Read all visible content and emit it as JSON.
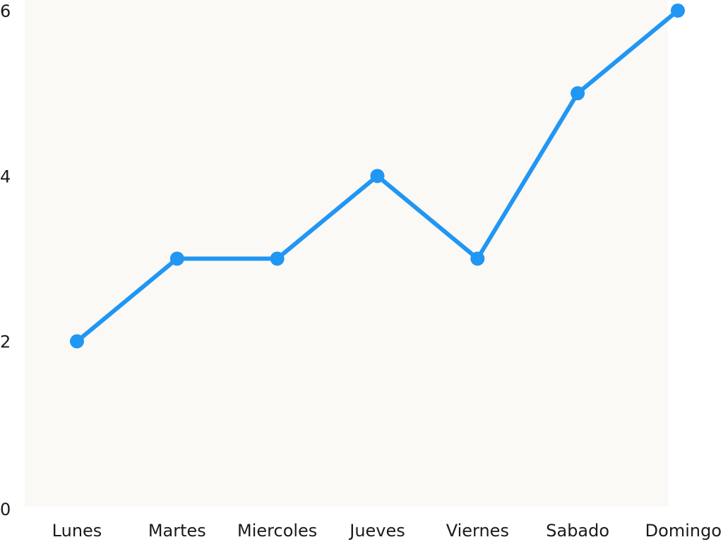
{
  "colors": {
    "plot_background": "#faf9f6",
    "series": "#2196f3",
    "text": "#1a1a1a"
  },
  "chart_data": {
    "type": "line",
    "categories": [
      "Lunes",
      "Martes",
      "Miercoles",
      "Jueves",
      "Viernes",
      "Sabado",
      "Domingo"
    ],
    "series": [
      {
        "values": [
          2,
          3,
          3,
          4,
          3,
          5,
          6
        ]
      }
    ],
    "title": "",
    "xlabel": "",
    "ylabel": "",
    "ylim": [
      0,
      6
    ],
    "yticks": [
      "0",
      "2",
      "4",
      "6"
    ],
    "grid": false,
    "legend": "none",
    "markers": true
  }
}
